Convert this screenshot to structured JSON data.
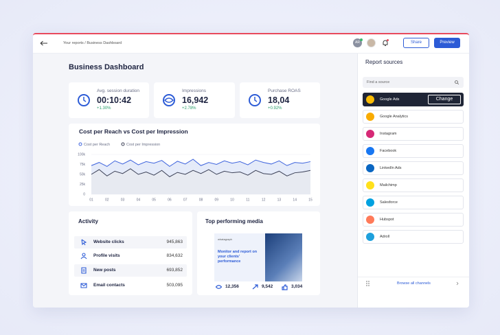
{
  "topbar": {
    "breadcrumb": "Your reports / Business Dashboard",
    "avatar": "AR",
    "share": "Share",
    "preview": "Preview"
  },
  "title": "Business Dashboard",
  "kpis": [
    {
      "label": "Avg. session duration",
      "value": "00:10:42",
      "change": "+1.30%"
    },
    {
      "label": "Impressions",
      "value": "16,942",
      "change": "+2.78%"
    },
    {
      "label": "Purchase ROAS",
      "value": "18,04",
      "change": "+0.92%"
    }
  ],
  "chart_data": {
    "type": "line",
    "title": "Cost per Reach vs Cost per Impression",
    "categories": [
      "01",
      null,
      "02",
      null,
      "03",
      null,
      "04",
      null,
      "05",
      null,
      "06",
      null,
      "07",
      null,
      "08",
      null,
      "09",
      null,
      "10",
      null,
      "11",
      null,
      "12",
      null,
      "13",
      null,
      "14",
      null,
      "15"
    ],
    "series": [
      {
        "name": "Cost per Reach",
        "color": "#3d63dd",
        "values": [
          72000,
          80000,
          70000,
          84000,
          76000,
          86000,
          74000,
          82000,
          78000,
          85000,
          70000,
          83000,
          76000,
          88000,
          72000,
          80000,
          75000,
          84000,
          78000,
          82000,
          74000,
          86000,
          80000,
          76000,
          84000,
          72000,
          80000,
          78000,
          82000
        ]
      },
      {
        "name": "Cost per Impression",
        "color": "#3a3f55",
        "values": [
          50000,
          62000,
          46000,
          58000,
          52000,
          64000,
          50000,
          56000,
          48000,
          60000,
          44000,
          55000,
          50000,
          60000,
          52000,
          62000,
          50000,
          58000,
          54000,
          56000,
          48000,
          60000,
          52000,
          50000,
          58000,
          46000,
          54000,
          56000,
          60000
        ]
      }
    ],
    "ylim": [
      0,
      100000
    ],
    "yticks": [
      0,
      {
        "value": 25000,
        "label": "25k"
      },
      {
        "value": 50000,
        "label": "50k"
      },
      {
        "value": 75000,
        "label": "75k"
      },
      {
        "value": 100000,
        "label": "100k"
      }
    ],
    "grid": true,
    "legend": "top-left"
  },
  "activity": {
    "title": "Activity",
    "rows": [
      {
        "label": "Website clicks",
        "value": "945,863"
      },
      {
        "label": "Profile visits",
        "value": "834,632"
      },
      {
        "label": "New posts",
        "value": "693,852"
      },
      {
        "label": "Email contacts",
        "value": "503,095"
      }
    ]
  },
  "top_media": {
    "title": "Top performing media",
    "brand": "whatagraph",
    "headline": "Monitor and report on your clients' performance",
    "stats": [
      "12,356",
      "9,542",
      "3,034"
    ]
  },
  "sources": {
    "title": "Report sources",
    "search": "Find a source",
    "action": "Change",
    "browse": "Browse all channels",
    "items": [
      "Google Ads",
      "Google Analytics",
      "Instagram",
      "Facebook",
      "LinkedIn Ads",
      "Mailchimp",
      "Salesforce",
      "Hubspot",
      "Adroll"
    ]
  }
}
